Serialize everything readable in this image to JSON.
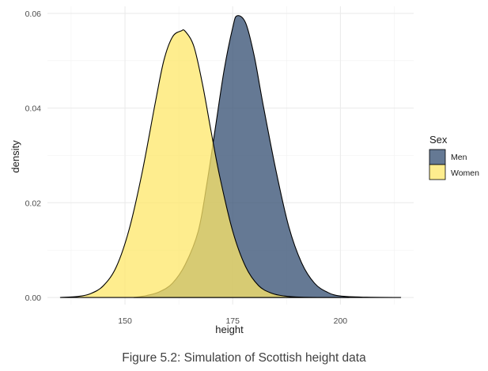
{
  "chart_data": {
    "type": "area",
    "subtype": "density",
    "xlabel": "height",
    "ylabel": "density",
    "x_ticks": [
      150,
      175,
      200
    ],
    "y_ticks": [
      0.0,
      0.02,
      0.04,
      0.06
    ],
    "y_tick_labels": [
      "0.00",
      "0.02",
      "0.04",
      "0.06"
    ],
    "xlim": [
      132,
      217
    ],
    "ylim": [
      -0.0015,
      0.0615
    ],
    "grid": true,
    "legend": {
      "title": "Sex",
      "position": "right"
    },
    "series": [
      {
        "name": "Men",
        "color": "#3f5779",
        "opacity": 0.8,
        "x": [
          152,
          155,
          158,
          161,
          164,
          167,
          169,
          171,
          173,
          175,
          176,
          178,
          180,
          182,
          185,
          188,
          191,
          194,
          197,
          200,
          206,
          214
        ],
        "y": [
          0.0,
          0.0004,
          0.0012,
          0.003,
          0.007,
          0.014,
          0.024,
          0.036,
          0.048,
          0.057,
          0.0595,
          0.058,
          0.051,
          0.041,
          0.027,
          0.015,
          0.0073,
          0.003,
          0.0011,
          0.0003,
          5e-05,
          0.0
        ]
      },
      {
        "name": "Women",
        "color": "#fde768",
        "opacity": 0.75,
        "x": [
          135,
          139,
          142,
          145,
          148,
          151,
          154,
          157,
          159,
          161,
          163,
          164,
          166,
          168,
          170,
          172,
          175,
          178,
          181,
          184,
          187,
          191,
          196,
          202
        ],
        "y": [
          0.0,
          0.0002,
          0.0008,
          0.0025,
          0.0065,
          0.0145,
          0.0265,
          0.041,
          0.05,
          0.055,
          0.0563,
          0.0562,
          0.053,
          0.045,
          0.035,
          0.0255,
          0.014,
          0.0065,
          0.0025,
          0.0009,
          0.0003,
          5e-05,
          0.0,
          0.0
        ]
      }
    ]
  },
  "caption": "Figure 5.2: Simulation of Scottish height data"
}
